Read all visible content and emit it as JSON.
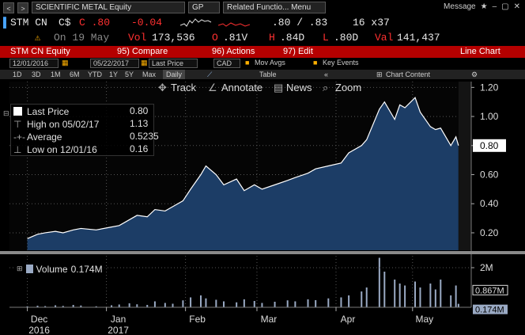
{
  "toolbar": {
    "security": "SCIENTIFIC METAL Equity",
    "gp": "GP",
    "related": "Related Functio... Menu",
    "message": "Message",
    "icons": [
      "star-icon",
      "minus-icon",
      "restore-icon",
      "close-icon"
    ]
  },
  "quote": {
    "ticker": "STM CN",
    "currency": "C$",
    "last": "C .80",
    "change": "-0.04",
    "bid_ask": ".80 / .83",
    "size": "16 x37",
    "date": "On 19 May",
    "vol_label": "Vol",
    "vol": "173,536",
    "open_label": "O",
    "open": ".81V",
    "high_label": "H",
    "high": ".84D",
    "low_label": "L",
    "low": ".80D",
    "val_label": "Val",
    "val": "141,437"
  },
  "menu": {
    "equity": "STM CN Equity",
    "compare": "95) Compare",
    "actions": "96) Actions",
    "edit": "97) Edit",
    "title": "Line Chart"
  },
  "controls": {
    "start": "12/01/2016",
    "end": "05/22/2017",
    "field": "Last Price",
    "ccy": "CAD",
    "mov_avgs": "Mov Avgs",
    "key_events": "Key Events",
    "periods": [
      "1D",
      "3D",
      "1M",
      "6M",
      "YTD",
      "1Y",
      "5Y",
      "Max"
    ],
    "freq": "Daily",
    "table": "Table",
    "chart_content": "Chart Content"
  },
  "tools": {
    "track": "Track",
    "annotate": "Annotate",
    "news": "News",
    "zoom": "Zoom"
  },
  "legend": {
    "last_label": "Last Price",
    "last_value": "0.80",
    "high_label": "High on 05/02/17",
    "high_value": "1.13",
    "avg_label": "Average",
    "avg_value": "0.5235",
    "low_label": "Low on 12/01/16",
    "low_value": "0.16",
    "volume_label": "Volume",
    "volume_value": "0.174M"
  },
  "chart_data": {
    "type": "area",
    "series": [
      {
        "name": "Last Price",
        "color": "#ffffff",
        "fill": "#1c3d66",
        "x": [
          "2016-12-01",
          "2016-12-05",
          "2016-12-08",
          "2016-12-12",
          "2016-12-15",
          "2016-12-19",
          "2016-12-22",
          "2016-12-28",
          "2017-01-03",
          "2017-01-06",
          "2017-01-10",
          "2017-01-13",
          "2017-01-17",
          "2017-01-20",
          "2017-01-24",
          "2017-01-27",
          "2017-01-31",
          "2017-02-03",
          "2017-02-07",
          "2017-02-09",
          "2017-02-13",
          "2017-02-16",
          "2017-02-21",
          "2017-02-24",
          "2017-02-28",
          "2017-03-03",
          "2017-03-08",
          "2017-03-13",
          "2017-03-16",
          "2017-03-21",
          "2017-03-24",
          "2017-03-29",
          "2017-04-03",
          "2017-04-06",
          "2017-04-11",
          "2017-04-13",
          "2017-04-18",
          "2017-04-20",
          "2017-04-24",
          "2017-04-26",
          "2017-04-28",
          "2017-05-02",
          "2017-05-04",
          "2017-05-08",
          "2017-05-10",
          "2017-05-12",
          "2017-05-16",
          "2017-05-18",
          "2017-05-19"
        ],
        "values": [
          0.16,
          0.19,
          0.2,
          0.21,
          0.2,
          0.22,
          0.23,
          0.22,
          0.24,
          0.25,
          0.29,
          0.32,
          0.31,
          0.36,
          0.35,
          0.38,
          0.42,
          0.5,
          0.6,
          0.66,
          0.6,
          0.53,
          0.57,
          0.49,
          0.53,
          0.5,
          0.53,
          0.56,
          0.58,
          0.61,
          0.64,
          0.66,
          0.68,
          0.75,
          0.8,
          0.84,
          1.05,
          1.1,
          0.98,
          1.08,
          1.06,
          1.13,
          1.03,
          0.93,
          0.91,
          0.92,
          0.8,
          0.86,
          0.8
        ]
      }
    ],
    "volume": {
      "name": "Volume",
      "color": "#9aaac4",
      "values_m": [
        0.05,
        0.08,
        0.06,
        0.1,
        0.07,
        0.12,
        0.09,
        0.05,
        0.1,
        0.14,
        0.2,
        0.15,
        0.12,
        0.3,
        0.22,
        0.18,
        0.35,
        0.5,
        0.6,
        0.45,
        0.38,
        0.3,
        0.25,
        0.4,
        0.32,
        0.22,
        0.28,
        0.35,
        0.3,
        0.4,
        0.36,
        0.45,
        0.5,
        0.6,
        0.8,
        1.0,
        2.5,
        1.8,
        1.4,
        1.2,
        1.1,
        1.3,
        1.0,
        1.2,
        0.9,
        1.4,
        0.6,
        1.1,
        0.174
      ],
      "avg_value_m": 0.867,
      "last_value_m": 0.174
    },
    "x_tick_labels": [
      "Dec",
      "Jan",
      "Feb",
      "Mar",
      "Apr",
      "May"
    ],
    "x_tick_dates": [
      "2016-12-01",
      "2017-01-01",
      "2017-02-01",
      "2017-03-01",
      "2017-04-01",
      "2017-05-01"
    ],
    "year_labels": [
      "2016",
      "2017"
    ],
    "y_ticks": [
      "0.20",
      "0.40",
      "0.60",
      "0.80",
      "1.00",
      "1.20"
    ],
    "y_tick_values": [
      0.2,
      0.4,
      0.6,
      0.8,
      1.0,
      1.2
    ],
    "ylim": [
      0.08,
      1.24
    ],
    "xlim": [
      "2016-11-24",
      "2017-05-24"
    ],
    "last_price_tag": "0.80",
    "volume_ticks": [
      "2M"
    ],
    "volume_tick_values": [
      2
    ],
    "volume_ylim": [
      0,
      2.6
    ],
    "volume_avg_tag": "0.867M",
    "volume_last_tag": "0.174M",
    "grid": true
  }
}
